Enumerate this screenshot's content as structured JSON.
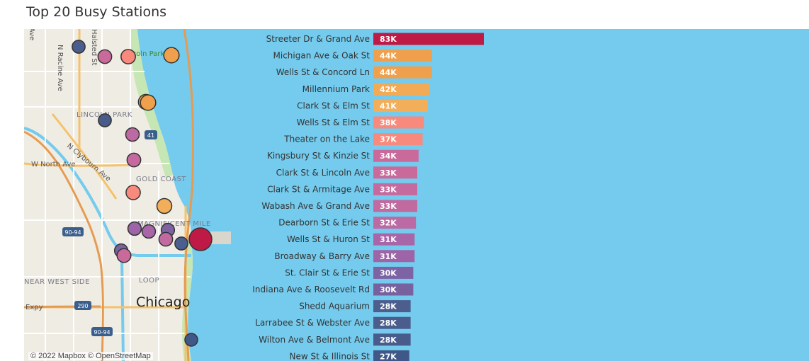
{
  "title": "Top 20 Busy Stations",
  "map": {
    "attribution": "© 2022 Mapbox © OpenStreetMap",
    "labels": {
      "chicago": "Chicago",
      "lincoln_park": "Lincoln Park",
      "lincoln_park_area": "LINCOLN PARK",
      "gold_coast": "GOLD COAST",
      "magnificent_mile": "MAGNIFICENT MILE",
      "loop": "LOOP",
      "near_west_side": "NEAR WEST SIDE",
      "w_north_ave": "W North Ave",
      "n_clybourn_ave": "N Clybourn Ave",
      "n_racine_ave": "N Racine Ave",
      "halsted_st": "Halsted St",
      "ave_edge": "Ave",
      "expy": "Expy",
      "shield_41": "41",
      "shield_9094": "90-94",
      "shield_290": "290"
    }
  },
  "chart_data": {
    "type": "bar",
    "orientation": "horizontal",
    "title": "Top 20 Busy Stations",
    "xlabel": "",
    "ylabel": "",
    "categories": [
      "Streeter Dr & Grand Ave",
      "Michigan Ave & Oak St",
      "Wells St & Concord Ln",
      "Millennium Park",
      "Clark St & Elm St",
      "Wells St & Elm St",
      "Theater on the Lake",
      "Kingsbury St & Kinzie St",
      "Clark St & Lincoln Ave",
      "Clark St & Armitage Ave",
      "Wabash Ave & Grand Ave",
      "Dearborn St & Erie St",
      "Wells St & Huron St",
      "Broadway & Barry Ave",
      "St. Clair St & Erie St",
      "Indiana Ave & Roosevelt Rd",
      "Shedd Aquarium",
      "Larrabee St & Webster Ave",
      "Wilton Ave & Belmont Ave",
      "New St & Illinois St"
    ],
    "values": [
      83000,
      44000,
      44000,
      42000,
      41000,
      38000,
      37000,
      34000,
      33000,
      33000,
      33000,
      32000,
      31000,
      31000,
      30000,
      30000,
      28000,
      28000,
      28000,
      27000
    ],
    "data_labels": [
      "83K",
      "44K",
      "44K",
      "42K",
      "41K",
      "38K",
      "37K",
      "34K",
      "33K",
      "33K",
      "33K",
      "32K",
      "31K",
      "31K",
      "30K",
      "30K",
      "28K",
      "28K",
      "28K",
      "27K"
    ],
    "colors": [
      "#be1a45",
      "#f0a04c",
      "#f0a04c",
      "#f2aa55",
      "#f3ae5a",
      "#f78a7d",
      "#f78a7d",
      "#ca6a9a",
      "#c96a9b",
      "#c56a9e",
      "#c06aa0",
      "#bc6aa3",
      "#a865a8",
      "#9d64a8",
      "#7d63a4",
      "#77629f",
      "#4c5e8e",
      "#4a5d8c",
      "#485b8a",
      "#405887"
    ],
    "xlim": [
      0,
      83000
    ],
    "grid": false,
    "legend": "none"
  }
}
